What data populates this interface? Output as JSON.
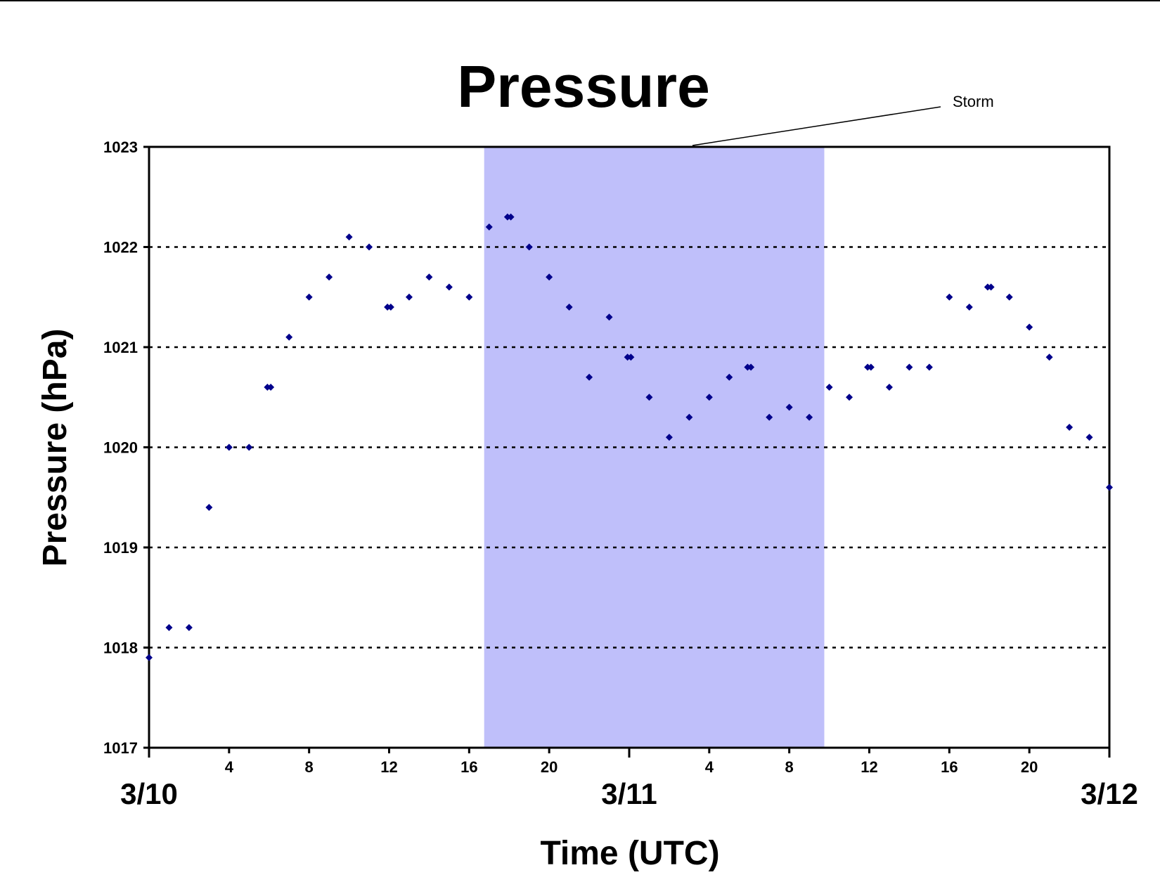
{
  "chart_data": {
    "type": "scatter",
    "title": "Pressure",
    "xlabel": "Time (UTC)",
    "ylabel": "Pressure (hPa)",
    "ylim": [
      1017,
      1023
    ],
    "yticks": [
      1017,
      1018,
      1019,
      1020,
      1021,
      1022,
      1023
    ],
    "grid": "horizontal dotted",
    "xlim": [
      "3/10 00:00",
      "3/12 00:00"
    ],
    "x_tick_labels": [
      "4",
      "8",
      "12",
      "16",
      "20",
      "4",
      "8",
      "12",
      "16",
      "20"
    ],
    "x_tick_hours": [
      4,
      8,
      12,
      16,
      20,
      28,
      32,
      36,
      40,
      44
    ],
    "date_labels": [
      {
        "text": "3/10",
        "hour": 0
      },
      {
        "text": "3/11",
        "hour": 24
      },
      {
        "text": "3/12",
        "hour": 48
      }
    ],
    "marker_color": "#00008b",
    "shaded_region": {
      "label": "Storm",
      "start": "3/10 16:45",
      "end": "3/11 09:45",
      "color": "#bfbffa"
    },
    "series": [
      {
        "x": [
          "3/10 00:00",
          "3/10 01:00",
          "3/10 02:00",
          "3/10 03:00",
          "3/10 04:00",
          "3/10 05:00",
          "3/10 05:55",
          "3/10 06:05",
          "3/10 07:00",
          "3/10 08:00",
          "3/10 09:00",
          "3/10 10:00",
          "3/10 11:00",
          "3/10 11:55",
          "3/10 12:05",
          "3/10 13:00",
          "3/10 14:00",
          "3/10 15:00",
          "3/10 16:00",
          "3/10 17:00",
          "3/10 17:55",
          "3/10 18:05",
          "3/10 19:00",
          "3/10 20:00",
          "3/10 21:00",
          "3/10 22:00",
          "3/10 23:00",
          "3/10 23:55",
          "3/11 00:05",
          "3/11 01:00",
          "3/11 02:00",
          "3/11 03:00",
          "3/11 04:00",
          "3/11 05:00",
          "3/11 05:55",
          "3/11 06:05",
          "3/11 07:00",
          "3/11 08:00",
          "3/11 09:00",
          "3/11 10:00",
          "3/11 11:00",
          "3/11 11:55",
          "3/11 12:05",
          "3/11 13:00",
          "3/11 14:00",
          "3/11 15:00",
          "3/11 16:00",
          "3/11 17:00",
          "3/11 17:55",
          "3/11 18:05",
          "3/11 19:00",
          "3/11 20:00",
          "3/11 21:00",
          "3/11 22:00",
          "3/11 23:00",
          "3/12 00:00"
        ],
        "y": [
          1017.9,
          1018.2,
          1018.2,
          1019.4,
          1020.0,
          1020.0,
          1020.6,
          1020.6,
          1021.1,
          1021.5,
          1021.7,
          1022.1,
          1022.0,
          1021.4,
          1021.4,
          1021.5,
          1021.7,
          1021.6,
          1021.5,
          1022.2,
          1022.3,
          1022.3,
          1022.0,
          1021.7,
          1021.4,
          1020.7,
          1021.3,
          1020.9,
          1020.9,
          1020.5,
          1020.1,
          1020.3,
          1020.5,
          1020.7,
          1020.8,
          1020.8,
          1020.3,
          1020.4,
          1020.3,
          1020.6,
          1020.5,
          1020.8,
          1020.8,
          1020.6,
          1020.8,
          1020.8,
          1021.5,
          1021.4,
          1021.6,
          1021.6,
          1021.5,
          1021.2,
          1020.9,
          1020.2,
          1020.1,
          1019.6
        ]
      }
    ]
  }
}
